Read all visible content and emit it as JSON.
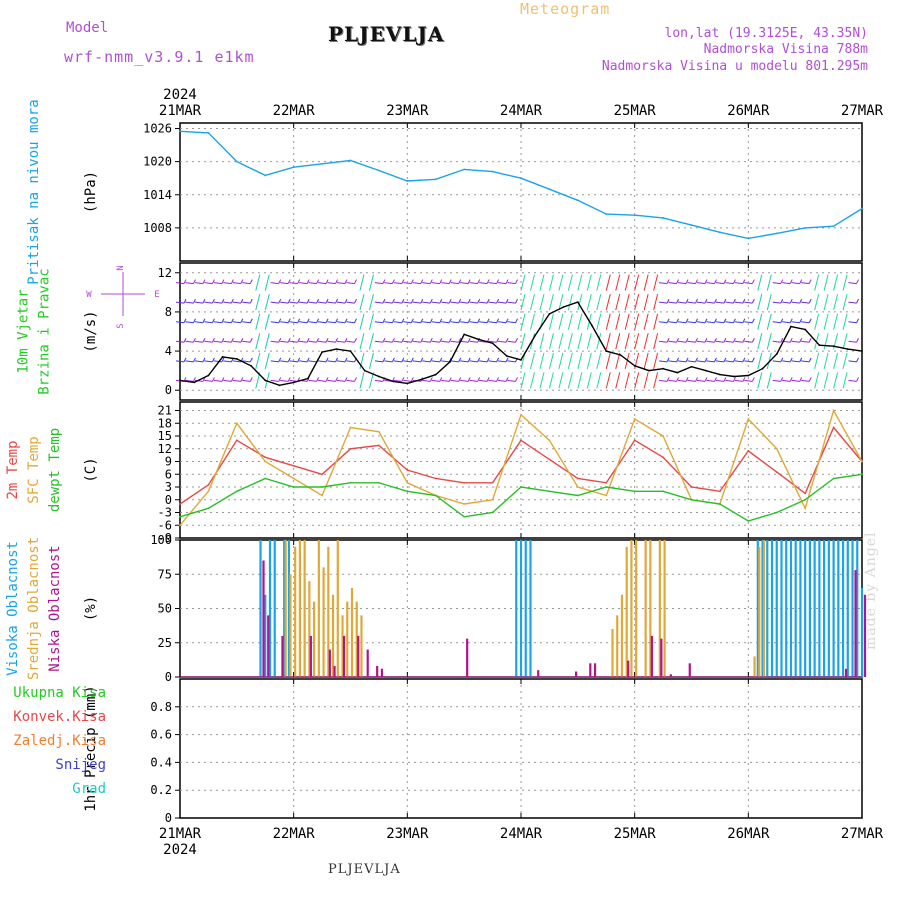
{
  "header": {
    "model_label": "Model",
    "model_name": "wrf-nmm_v3.9.1 e1km",
    "station": "PLJEVLJA",
    "meteogram_label": "Meteogram",
    "lonlat": "lon,lat (19.3125E, 43.35N)",
    "elevation": "Nadmorska Visina 788m",
    "model_elevation": "Nadmorska Visina u modelu 801.295m",
    "credit": "made by Angel",
    "footer_station": "PLJEVLJA"
  },
  "time_axis": {
    "year": "2024",
    "labels": [
      "21MAR",
      "22MAR",
      "23MAR",
      "24MAR",
      "25MAR",
      "26MAR",
      "27MAR"
    ],
    "hours_total": 144
  },
  "compass": {
    "n": "N",
    "s": "S",
    "e": "E",
    "w": "W"
  },
  "chart_data": [
    {
      "type": "line",
      "panel": "pressure",
      "ylabel_side": [
        "Pritisak na nivou mora"
      ],
      "ylabel": "(hPa)",
      "ylim": [
        1002,
        1027
      ],
      "yticks": [
        1008,
        1014,
        1020,
        1026
      ],
      "grid": true,
      "series": [
        {
          "color": "#1aa3e8",
          "x": [
            0,
            6,
            12,
            18,
            24,
            30,
            36,
            42,
            48,
            54,
            60,
            66,
            72,
            78,
            84,
            90,
            96,
            102,
            108,
            114,
            120,
            126,
            132,
            138,
            144
          ],
          "y": [
            1025.5,
            1025.2,
            1020,
            1017.5,
            1019,
            1019.6,
            1020.2,
            1018.4,
            1016.5,
            1016.8,
            1018.6,
            1018.2,
            1017,
            1015,
            1013,
            1010.5,
            1010.3,
            1009.8,
            1008.5,
            1007.2,
            1006.1,
            1007,
            1008,
            1008.3,
            1011.5
          ]
        }
      ]
    },
    {
      "type": "line",
      "panel": "wind",
      "ylabel_side": [
        "10m Vjetar",
        "Brzina i Pravac"
      ],
      "ylabel": "(m/s)",
      "ylim": [
        -1,
        13
      ],
      "yticks": [
        0,
        4,
        8,
        12
      ],
      "grid": true,
      "series": [
        {
          "color": "#000000",
          "x": [
            0,
            3,
            6,
            9,
            12,
            15,
            18,
            21,
            24,
            27,
            30,
            33,
            36,
            39,
            42,
            45,
            48,
            51,
            54,
            57,
            60,
            63,
            66,
            69,
            72,
            75,
            78,
            81,
            84,
            87,
            90,
            93,
            96,
            99,
            102,
            105,
            108,
            111,
            114,
            117,
            120,
            123,
            126,
            129,
            132,
            135,
            138,
            141,
            144
          ],
          "y": [
            1,
            0.8,
            1.5,
            3.4,
            3.2,
            2.5,
            1,
            0.5,
            0.8,
            1.2,
            3.9,
            4.2,
            4,
            2,
            1.4,
            0.9,
            0.7,
            1.1,
            1.6,
            2.9,
            5.7,
            5.2,
            4.8,
            3.5,
            3.1,
            5.6,
            7.8,
            8.5,
            9,
            6.6,
            4,
            3.6,
            2.5,
            2,
            2.2,
            1.8,
            2.4,
            2,
            1.6,
            1.4,
            1.5,
            2.2,
            3.7,
            6.5,
            6.2,
            4.6,
            4.5,
            4.2,
            4
          ]
        }
      ]
    },
    {
      "type": "line",
      "panel": "temperature",
      "ylabel_side": [
        "2m Temp",
        "SFC Temp",
        "dewpt Temp"
      ],
      "ylabel": "(C)",
      "ylim": [
        -9,
        23
      ],
      "yticks": [
        -9,
        -6,
        -3,
        0,
        3,
        6,
        9,
        12,
        15,
        18,
        21
      ],
      "grid": true,
      "series": [
        {
          "color": "#e84848",
          "x": [
            0,
            6,
            12,
            18,
            24,
            30,
            36,
            42,
            48,
            54,
            60,
            66,
            72,
            78,
            84,
            90,
            96,
            102,
            108,
            114,
            120,
            126,
            132,
            138,
            144
          ],
          "y": [
            -1,
            3.5,
            14,
            10,
            8,
            6,
            12,
            12.8,
            7,
            5,
            4,
            4,
            14,
            9.5,
            5,
            4,
            14,
            10,
            3,
            2,
            11.5,
            6.5,
            1.5,
            17,
            9
          ]
        },
        {
          "color": "#e0a838",
          "x": [
            0,
            6,
            12,
            18,
            24,
            30,
            36,
            42,
            48,
            54,
            60,
            66,
            72,
            78,
            84,
            90,
            96,
            102,
            108,
            114,
            120,
            126,
            132,
            138,
            144
          ],
          "y": [
            -6,
            2,
            18,
            9,
            5,
            1,
            17,
            16,
            4,
            1,
            -1,
            0,
            20,
            14,
            3,
            1,
            19,
            15,
            0,
            -1,
            19,
            12,
            -2,
            21,
            9
          ]
        },
        {
          "color": "#28c028",
          "x": [
            0,
            6,
            12,
            18,
            24,
            30,
            36,
            42,
            48,
            54,
            60,
            66,
            72,
            78,
            84,
            90,
            96,
            102,
            108,
            114,
            120,
            126,
            132,
            138,
            144
          ],
          "y": [
            -4,
            -2,
            2,
            5,
            3,
            3,
            4,
            4,
            2,
            1,
            -4,
            -3,
            3,
            2,
            1,
            3,
            2,
            2,
            0,
            -1,
            -5,
            -3,
            0,
            5,
            6
          ]
        }
      ]
    },
    {
      "type": "bar",
      "panel": "cloud",
      "ylabel_side": [
        "Visoka Oblacnost",
        "Srednja Oblacnost",
        "Niska Oblacnost"
      ],
      "ylabel": "(%)",
      "ylim": [
        0,
        100
      ],
      "yticks": [
        0,
        25,
        50,
        75,
        100
      ],
      "grid": true,
      "series": [
        {
          "color": "#1aa3e8",
          "x": [
            17,
            18,
            19,
            20,
            22,
            23,
            71,
            72,
            73,
            74,
            122,
            123,
            124,
            125,
            126,
            127,
            128,
            129,
            130,
            131,
            132,
            133,
            134,
            135,
            136,
            137,
            138,
            139,
            140,
            141,
            142,
            143,
            144
          ],
          "values": [
            100,
            60,
            100,
            100,
            100,
            100,
            100,
            100,
            100,
            100,
            100,
            100,
            100,
            100,
            100,
            100,
            100,
            100,
            100,
            100,
            100,
            100,
            100,
            100,
            100,
            100,
            100,
            100,
            100,
            100,
            100,
            100,
            65
          ]
        },
        {
          "color": "#e0a838",
          "x": [
            22,
            23,
            24,
            25,
            26,
            27,
            28,
            29,
            30,
            31,
            32,
            33,
            34,
            35,
            36,
            37,
            38,
            91,
            92,
            93,
            94,
            95,
            96,
            98,
            99,
            101,
            102,
            121,
            122,
            123
          ],
          "values": [
            100,
            75,
            95,
            100,
            100,
            70,
            55,
            100,
            80,
            95,
            60,
            100,
            45,
            55,
            65,
            55,
            45,
            35,
            45,
            60,
            95,
            100,
            100,
            100,
            100,
            100,
            100,
            15,
            95,
            100
          ]
        },
        {
          "color": "#b0148c",
          "x": [
            17,
            18,
            21,
            27,
            31,
            32,
            34,
            37,
            39,
            41,
            42,
            60,
            75,
            83,
            86,
            87,
            94,
            99,
            101,
            103,
            107,
            140,
            142,
            144
          ],
          "values": [
            85,
            45,
            30,
            30,
            20,
            8,
            30,
            30,
            20,
            8,
            6,
            28,
            5,
            4,
            10,
            10,
            12,
            30,
            28,
            2,
            10,
            6,
            78,
            60
          ]
        }
      ]
    },
    {
      "type": "line",
      "panel": "precipitation",
      "ylabel_side": [
        "Ukupna Kisa",
        "Konvek.Kisa",
        "Zaledj.Kisa",
        "Snijeg",
        "Grad"
      ],
      "ylabel": "1hr Precip (mm)",
      "ylim": [
        0,
        1
      ],
      "yticks": [
        0,
        0.2,
        0.4,
        0.6,
        0.8
      ],
      "grid": true,
      "series": []
    }
  ]
}
